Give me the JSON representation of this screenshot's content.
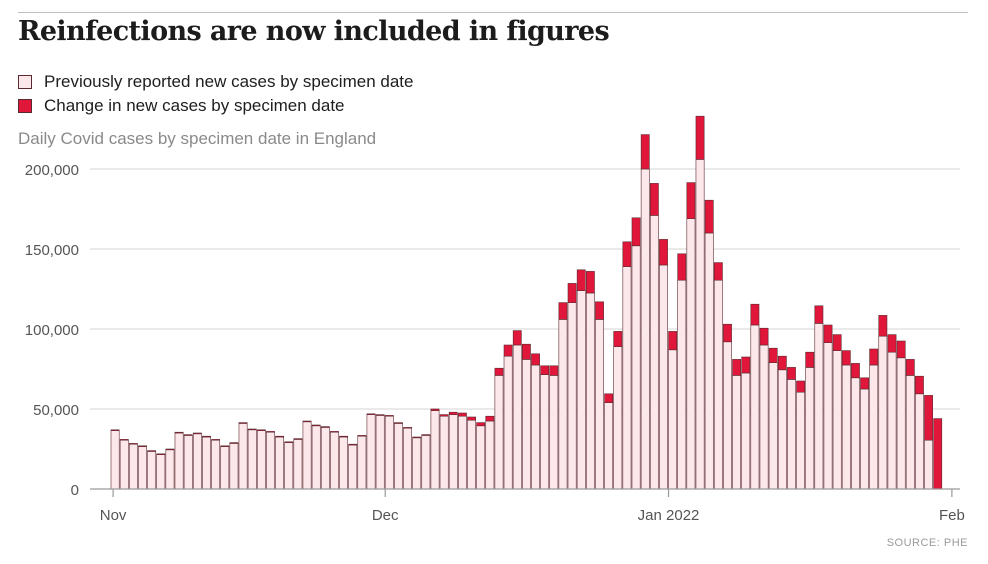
{
  "title": "Reinfections are now included in figures",
  "legend": [
    {
      "label": "Previously reported new cases by specimen date",
      "color": "#fce8ea"
    },
    {
      "label": "Change in new cases by specimen date",
      "color": "#e0163a"
    }
  ],
  "subtitle": "Daily Covid cases by specimen date in England",
  "source": "SOURCE: PHE",
  "colors": {
    "previous": "#fce8ea",
    "change": "#e0163a",
    "outline": "#5a2a30",
    "grid": "#e3e3e3",
    "axis": "#9a9a9a",
    "tick_text": "#555555"
  },
  "chart_data": {
    "type": "bar",
    "stacked": true,
    "title": "Reinfections are now included in figures",
    "subtitle": "Daily Covid cases by specimen date in England",
    "xlabel": "",
    "ylabel": "",
    "ylim": [
      0,
      225000
    ],
    "yticks": [
      0,
      50000,
      100000,
      150000,
      200000
    ],
    "ytick_labels": [
      "0",
      "50,000",
      "100,000",
      "150,000",
      "200,000"
    ],
    "xticks": [
      {
        "day_index": 0,
        "label": "Nov"
      },
      {
        "day_index": 30,
        "label": "Dec"
      },
      {
        "day_index": 61,
        "label": "Jan 2022"
      },
      {
        "day_index": 92,
        "label": "Feb"
      }
    ],
    "x_start": "2021-11-01",
    "series": [
      {
        "name": "Previously reported new cases by specimen date",
        "values": [
          36500,
          30500,
          28000,
          26500,
          23500,
          21500,
          24500,
          35000,
          33500,
          34500,
          32500,
          30500,
          26500,
          28500,
          41000,
          37000,
          36500,
          35500,
          32500,
          29000,
          31000,
          42000,
          39500,
          38500,
          35500,
          32500,
          27500,
          33000,
          46500,
          46000,
          45500,
          41000,
          38000,
          32000,
          33500,
          49000,
          45500,
          46500,
          45500,
          43000,
          39500,
          42500,
          71000,
          83000,
          90000,
          81000,
          77500,
          71500,
          71000,
          106000,
          116500,
          124000,
          122500,
          106000,
          54000,
          89000,
          139000,
          152000,
          200000,
          171000,
          140000,
          87000,
          130500,
          169000,
          206000,
          160000,
          130500,
          92000,
          71000,
          72500,
          102500,
          90000,
          79000,
          74500,
          68500,
          60500,
          76000,
          103500,
          91500,
          86500,
          77500,
          69500,
          62500,
          77500,
          95500,
          85500,
          82000,
          71000,
          59500,
          30500,
          0
        ]
      },
      {
        "name": "Change in new cases by specimen date",
        "values": [
          500,
          500,
          500,
          500,
          500,
          500,
          500,
          500,
          500,
          500,
          500,
          500,
          500,
          500,
          500,
          500,
          500,
          500,
          500,
          500,
          500,
          500,
          500,
          500,
          500,
          500,
          500,
          500,
          500,
          500,
          500,
          500,
          500,
          500,
          500,
          1000,
          1000,
          1500,
          2000,
          2000,
          2000,
          3000,
          4500,
          7000,
          9000,
          9500,
          7000,
          5500,
          6000,
          10500,
          12000,
          13000,
          13500,
          11000,
          5500,
          9500,
          15500,
          17500,
          21500,
          20000,
          16000,
          11500,
          16500,
          22500,
          27000,
          20500,
          11000,
          11000,
          10000,
          10000,
          13000,
          10500,
          9000,
          8500,
          7500,
          7000,
          9500,
          11000,
          11000,
          10000,
          9000,
          9000,
          7000,
          10000,
          13000,
          11000,
          10500,
          10000,
          11000,
          28000,
          44000
        ]
      }
    ]
  }
}
